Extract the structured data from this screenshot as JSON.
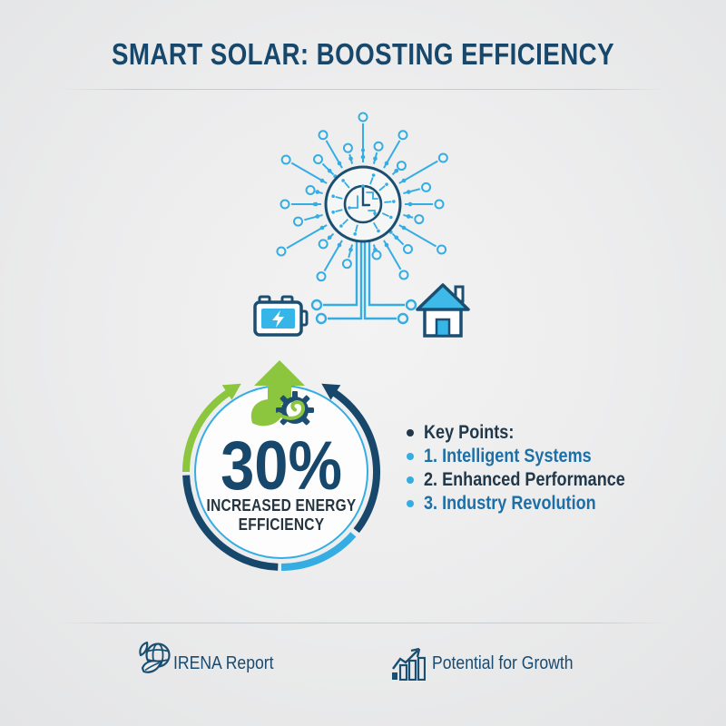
{
  "header": {
    "title": "SMART SOLAR: BOOSTING EFFICIENCY"
  },
  "diagram": {
    "hub_icon": "solar-network-hub-icon",
    "battery_icon": "battery-storage-icon",
    "house_icon": "smart-home-icon"
  },
  "badge": {
    "percent": "30%",
    "label_line1": "INCREASED ENERGY",
    "label_line2": "EFFICIENCY",
    "arrow_icon": "growth-arrow-icon",
    "leaf_icon": "leaf-icon",
    "gear_icon": "eco-gear-icon"
  },
  "key_points": {
    "header": "Key Points:",
    "items": [
      {
        "label": "1. Intelligent Systems"
      },
      {
        "label": "2. Enhanced Performance"
      },
      {
        "label": "3. Industry Revolution"
      }
    ]
  },
  "footer": {
    "left": {
      "icon": "eco-globe-icon",
      "label": "IRENA Report"
    },
    "right": {
      "icon": "growth-chart-icon",
      "label": "Potential for Growth"
    }
  },
  "colors": {
    "navy": "#1B4F72",
    "dark_navy_text": "#17486B",
    "steel_blue": "#1D6FA6",
    "light_blue": "#35ADE3",
    "green": "#8CC63F",
    "dark_label": "#25343F",
    "background": "#ECEDED"
  }
}
